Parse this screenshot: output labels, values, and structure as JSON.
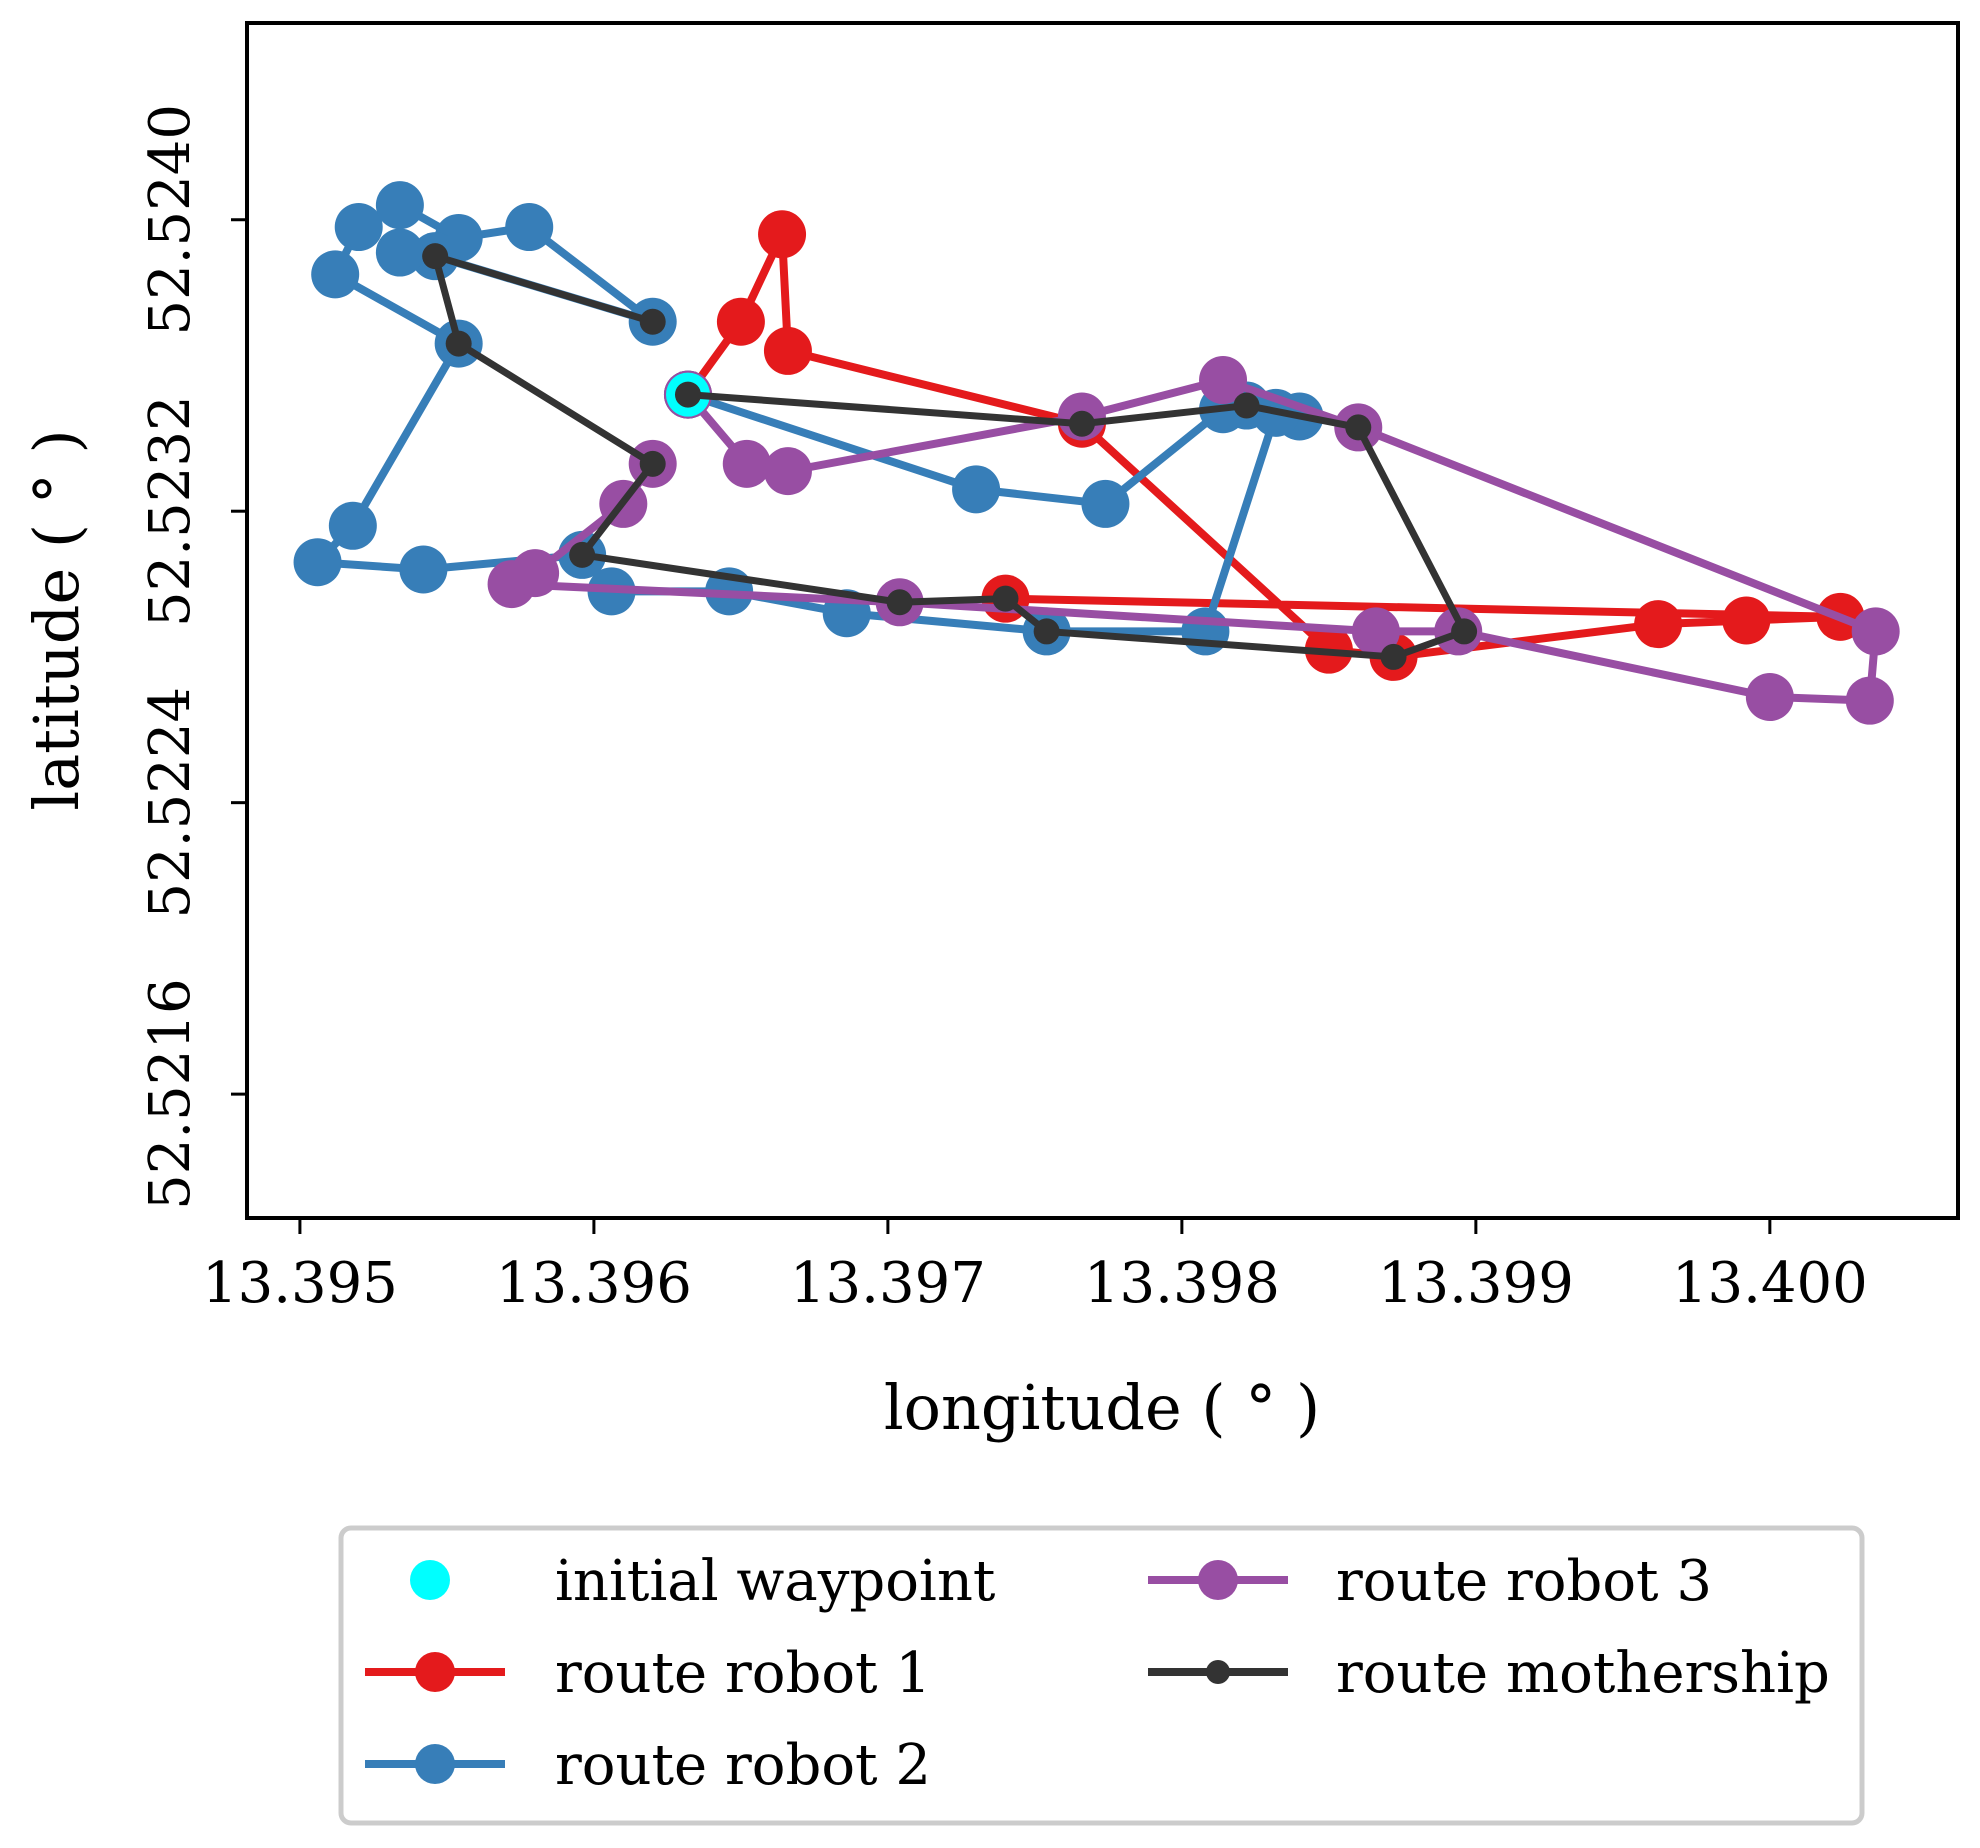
{
  "chart_data": {
    "type": "scatter",
    "xlabel": "longitude ( ° )",
    "ylabel": "latitude ( ° )",
    "xlim": [
      13.39482,
      13.40064
    ],
    "ylim": [
      52.52126,
      52.52454
    ],
    "xticks": [
      13.395,
      13.396,
      13.397,
      13.398,
      13.399,
      13.4
    ],
    "xtick_labels": [
      "13.395",
      "13.396",
      "13.397",
      "13.398",
      "13.399",
      "13.400"
    ],
    "yticks": [
      52.5216,
      52.5224,
      52.5232,
      52.524
    ],
    "ytick_labels": [
      "52.5216",
      "52.5224",
      "52.5232",
      "52.5240"
    ],
    "grid": false,
    "legend_placement": "below plot, two columns",
    "initial_waypoint": {
      "name": "initial waypoint",
      "color": "#00ffff",
      "x": 13.39632,
      "y": 52.52352
    },
    "series": [
      {
        "name": "route robot 1",
        "color": "#e41a1c",
        "marker": "large",
        "points": [
          [
            13.39632,
            52.52352
          ],
          [
            13.3965,
            52.52372
          ],
          [
            13.39664,
            52.52396
          ],
          [
            13.39666,
            52.52364
          ],
          [
            13.39766,
            52.52344
          ],
          [
            13.3985,
            52.52282
          ],
          [
            13.39872,
            52.5228
          ],
          [
            13.39962,
            52.52289
          ],
          [
            13.39992,
            52.5229
          ],
          [
            13.40024,
            52.52291
          ],
          [
            13.3974,
            52.52296
          ]
        ]
      },
      {
        "name": "route robot 2",
        "color": "#377eb8",
        "marker": "large",
        "points": [
          [
            13.39632,
            52.52352
          ],
          [
            13.3973,
            52.52326
          ],
          [
            13.39774,
            52.52322
          ],
          [
            13.39814,
            52.52348
          ],
          [
            13.39822,
            52.52349
          ],
          [
            13.3984,
            52.52346
          ],
          [
            13.39832,
            52.52347
          ],
          [
            13.39808,
            52.52287
          ],
          [
            13.39754,
            52.52287
          ],
          [
            13.39686,
            52.52292
          ],
          [
            13.39646,
            52.52298
          ],
          [
            13.39606,
            52.52298
          ],
          [
            13.39596,
            52.52308
          ],
          [
            13.39542,
            52.52304
          ],
          [
            13.39506,
            52.52306
          ],
          [
            13.39518,
            52.52316
          ],
          [
            13.39554,
            52.52366
          ],
          [
            13.39512,
            52.52385
          ],
          [
            13.3952,
            52.52398
          ],
          [
            13.39534,
            52.52404
          ],
          [
            13.39554,
            52.52395
          ],
          [
            13.39578,
            52.52398
          ],
          [
            13.3962,
            52.52372
          ],
          [
            13.39546,
            52.5239
          ],
          [
            13.39534,
            52.52391
          ]
        ]
      },
      {
        "name": "route robot 3",
        "color": "#984ea3",
        "marker": "large",
        "points": [
          [
            13.39632,
            52.52352
          ],
          [
            13.39652,
            52.52333
          ],
          [
            13.39666,
            52.52331
          ],
          [
            13.39766,
            52.52346
          ],
          [
            13.39814,
            52.52356
          ],
          [
            13.3986,
            52.52343
          ],
          [
            13.40036,
            52.52287
          ],
          [
            13.40034,
            52.52268
          ],
          [
            13.4,
            52.52269
          ],
          [
            13.39894,
            52.52287
          ],
          [
            13.39866,
            52.52287
          ],
          [
            13.39704,
            52.52295
          ],
          [
            13.39572,
            52.523
          ],
          [
            13.3958,
            52.52303
          ],
          [
            13.3961,
            52.52322
          ],
          [
            13.3962,
            52.52333
          ]
        ]
      },
      {
        "name": "route mothership",
        "color": "#333333",
        "marker": "small",
        "points": [
          [
            13.39632,
            52.52352
          ],
          [
            13.39766,
            52.52344
          ],
          [
            13.39822,
            52.52349
          ],
          [
            13.3986,
            52.52343
          ],
          [
            13.39896,
            52.52287
          ],
          [
            13.39872,
            52.5228
          ],
          [
            13.39754,
            52.52287
          ],
          [
            13.3974,
            52.52296
          ],
          [
            13.39704,
            52.52295
          ],
          [
            13.39596,
            52.52308
          ],
          [
            13.3962,
            52.52333
          ],
          [
            13.39554,
            52.52366
          ],
          [
            13.39546,
            52.5239
          ],
          [
            13.3962,
            52.52372
          ]
        ]
      }
    ]
  }
}
